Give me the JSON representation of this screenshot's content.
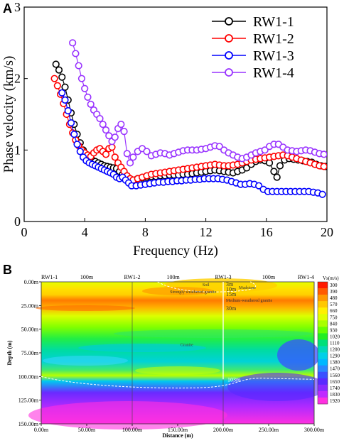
{
  "chart_data": [
    {
      "panel": "A",
      "type": "line",
      "xlabel": "Frequency (Hz)",
      "ylabel": "Phase velocity (km/s)",
      "xlim": [
        0,
        20
      ],
      "ylim": [
        0,
        3
      ],
      "xticks": [
        "0",
        "4",
        "8",
        "12",
        "16",
        "20"
      ],
      "yticks": [
        "0",
        "1",
        "2",
        "3"
      ],
      "legend_position": "top-right",
      "series": [
        {
          "name": "RW1-1",
          "color": "#000000",
          "x": [
            2.1,
            2.3,
            2.5,
            2.7,
            2.9,
            3.1,
            3.3,
            3.5,
            3.7,
            3.9,
            4.1,
            4.3,
            4.5,
            4.7,
            4.9,
            5.1,
            5.3,
            5.5,
            5.7,
            5.9,
            6.1,
            6.3,
            6.5,
            6.7,
            6.9,
            7.1,
            7.3,
            7.5,
            7.8,
            8.1,
            8.4,
            8.7,
            9.0,
            9.3,
            9.6,
            9.9,
            10.2,
            10.5,
            10.8,
            11.1,
            11.4,
            11.7,
            12.0,
            12.3,
            12.6,
            12.9,
            13.2,
            13.5,
            13.8,
            14.1,
            14.4,
            14.7,
            15.0,
            15.3,
            15.6,
            15.9,
            16.2,
            16.5,
            16.7,
            16.9,
            17.2,
            17.5,
            17.8,
            18.1,
            18.4,
            18.7,
            19.0,
            19.3,
            19.6,
            19.9
          ],
          "y": [
            2.2,
            2.12,
            2.02,
            1.88,
            1.7,
            1.52,
            1.36,
            1.22,
            1.1,
            1.0,
            0.94,
            0.9,
            0.86,
            0.84,
            0.82,
            0.8,
            0.78,
            0.77,
            0.76,
            0.75,
            0.74,
            0.7,
            0.66,
            0.62,
            0.6,
            0.58,
            0.58,
            0.6,
            0.61,
            0.62,
            0.63,
            0.63,
            0.64,
            0.64,
            0.65,
            0.65,
            0.65,
            0.66,
            0.66,
            0.67,
            0.68,
            0.69,
            0.7,
            0.71,
            0.72,
            0.71,
            0.7,
            0.69,
            0.68,
            0.7,
            0.72,
            0.75,
            0.8,
            0.84,
            0.86,
            0.85,
            0.82,
            0.7,
            0.62,
            0.78,
            0.86,
            0.88,
            0.87,
            0.86,
            0.85,
            0.84,
            0.83,
            0.8,
            0.78,
            0.77
          ]
        },
        {
          "name": "RW1-2",
          "color": "#ff0000",
          "x": [
            2.0,
            2.2,
            2.4,
            2.6,
            2.8,
            3.0,
            3.2,
            3.4,
            3.6,
            3.8,
            4.0,
            4.2,
            4.4,
            4.6,
            4.8,
            5.0,
            5.2,
            5.4,
            5.6,
            5.8,
            6.0,
            6.2,
            6.4,
            6.6,
            6.8,
            7.0,
            7.2,
            7.5,
            7.8,
            8.1,
            8.4,
            8.7,
            9.0,
            9.3,
            9.6,
            9.9,
            10.2,
            10.5,
            10.8,
            11.1,
            11.4,
            11.7,
            12.0,
            12.3,
            12.6,
            12.9,
            13.2,
            13.5,
            13.8,
            14.1,
            14.4,
            14.7,
            15.0,
            15.3,
            15.6,
            15.9,
            16.2,
            16.5,
            16.8,
            17.1,
            17.4,
            17.7,
            18.0,
            18.3,
            18.6,
            18.9,
            19.2,
            19.5,
            19.8
          ],
          "y": [
            2.0,
            1.9,
            1.78,
            1.65,
            1.5,
            1.36,
            1.24,
            1.14,
            1.06,
            1.0,
            0.96,
            0.93,
            0.91,
            0.96,
            1.0,
            1.02,
            0.98,
            0.94,
            1.02,
            1.04,
            0.9,
            0.82,
            0.76,
            0.7,
            0.64,
            0.6,
            0.58,
            0.6,
            0.62,
            0.64,
            0.66,
            0.67,
            0.68,
            0.69,
            0.7,
            0.71,
            0.72,
            0.73,
            0.74,
            0.75,
            0.76,
            0.77,
            0.78,
            0.79,
            0.8,
            0.79,
            0.78,
            0.78,
            0.79,
            0.8,
            0.82,
            0.84,
            0.86,
            0.87,
            0.88,
            0.89,
            0.9,
            0.91,
            0.92,
            0.93,
            0.92,
            0.9,
            0.88,
            0.86,
            0.84,
            0.82,
            0.8,
            0.78,
            0.77
          ]
        },
        {
          "name": "RW1-3",
          "color": "#0000ff",
          "x": [
            2.5,
            2.7,
            2.9,
            3.1,
            3.3,
            3.5,
            3.7,
            3.9,
            4.1,
            4.3,
            4.5,
            4.7,
            4.9,
            5.1,
            5.3,
            5.5,
            5.7,
            5.9,
            6.1,
            6.3,
            6.5,
            6.7,
            6.9,
            7.1,
            7.4,
            7.7,
            8.0,
            8.3,
            8.6,
            8.9,
            9.2,
            9.5,
            9.8,
            10.1,
            10.4,
            10.7,
            11.0,
            11.3,
            11.6,
            11.9,
            12.2,
            12.5,
            12.8,
            13.1,
            13.4,
            13.7,
            14.0,
            14.3,
            14.6,
            14.9,
            15.2,
            15.5,
            15.8,
            16.1,
            16.4,
            16.7,
            17.0,
            17.3,
            17.6,
            17.9,
            18.2,
            18.5,
            18.8,
            19.1,
            19.4,
            19.7
          ],
          "y": [
            1.8,
            1.7,
            1.55,
            1.38,
            1.22,
            1.08,
            0.98,
            0.9,
            0.85,
            0.82,
            0.8,
            0.78,
            0.76,
            0.74,
            0.72,
            0.7,
            0.68,
            0.66,
            0.62,
            0.6,
            0.62,
            0.58,
            0.54,
            0.5,
            0.5,
            0.51,
            0.52,
            0.53,
            0.54,
            0.55,
            0.55,
            0.56,
            0.56,
            0.57,
            0.57,
            0.58,
            0.58,
            0.59,
            0.59,
            0.6,
            0.6,
            0.6,
            0.6,
            0.59,
            0.58,
            0.56,
            0.54,
            0.52,
            0.52,
            0.53,
            0.52,
            0.5,
            0.45,
            0.42,
            0.42,
            0.42,
            0.42,
            0.42,
            0.42,
            0.42,
            0.42,
            0.42,
            0.42,
            0.41,
            0.4,
            0.38
          ]
        },
        {
          "name": "RW1-4",
          "color": "#9933ff",
          "x": [
            3.2,
            3.4,
            3.6,
            3.8,
            4.0,
            4.2,
            4.4,
            4.6,
            4.8,
            5.0,
            5.2,
            5.4,
            5.6,
            5.8,
            6.0,
            6.2,
            6.4,
            6.6,
            6.8,
            7.0,
            7.2,
            7.5,
            7.8,
            8.1,
            8.4,
            8.7,
            9.0,
            9.3,
            9.6,
            9.9,
            10.2,
            10.5,
            10.8,
            11.1,
            11.4,
            11.7,
            12.0,
            12.3,
            12.6,
            12.9,
            13.2,
            13.5,
            13.8,
            14.1,
            14.4,
            14.7,
            15.0,
            15.3,
            15.6,
            15.9,
            16.2,
            16.5,
            16.8,
            17.1,
            17.4,
            17.7,
            18.0,
            18.3,
            18.6,
            18.9,
            19.2,
            19.5,
            19.8
          ],
          "y": [
            2.5,
            2.35,
            2.18,
            2.0,
            1.86,
            1.74,
            1.64,
            1.56,
            1.5,
            1.44,
            1.36,
            1.28,
            1.2,
            1.12,
            1.18,
            1.3,
            1.36,
            1.26,
            0.95,
            0.82,
            0.9,
            0.98,
            1.02,
            0.98,
            0.92,
            0.94,
            0.96,
            0.95,
            0.93,
            0.95,
            0.97,
            0.99,
            1.0,
            1.0,
            1.0,
            1.01,
            1.02,
            1.04,
            1.06,
            1.05,
            1.0,
            0.96,
            0.93,
            0.9,
            0.88,
            0.9,
            0.93,
            0.96,
            0.98,
            1.0,
            1.05,
            1.08,
            1.08,
            1.04,
            1.0,
            0.99,
            0.98,
            0.99,
            1.0,
            0.99,
            0.97,
            0.95,
            0.94
          ]
        }
      ]
    },
    {
      "panel": "B",
      "type": "heatmap",
      "xlabel": "Distance  (m)",
      "ylabel": "Depth (m)",
      "xlim": [
        0,
        300
      ],
      "ylim": [
        0,
        150
      ],
      "xticks": [
        "0.00m",
        "50.00m",
        "100.00m",
        "150.00m",
        "200.00m",
        "250.00m",
        "300.00m"
      ],
      "yticks": [
        "0.00m",
        "25.00m",
        "50.00m",
        "75.00m",
        "100.00m",
        "125.00m",
        "150.00m"
      ],
      "stations": [
        {
          "label": "RW1-1",
          "x": 0
        },
        {
          "label": "RW1-2",
          "x": 100
        },
        {
          "label": "RW1-3",
          "x": 200
        },
        {
          "label": "RW1-4",
          "x": 300
        }
      ],
      "spacing_labels": [
        {
          "text": "100m",
          "x": 50
        },
        {
          "text": "100m",
          "x": 145
        },
        {
          "text": "100m",
          "x": 250
        }
      ],
      "annotations": {
        "soil": "Soil",
        "mudstone": "Mudstone",
        "strongly_weathered": "Strongly weathered granite",
        "medium_weathered": "Medium-weathered granite",
        "granite": "Granite",
        "d3": "3m",
        "d10": "10m",
        "d15": "15m",
        "d30": "30m",
        "d103": "103m"
      },
      "colorbar": {
        "title": "Vs(m/s)",
        "labels": [
          "300",
          "390",
          "480",
          "570",
          "660",
          "750",
          "840",
          "930",
          "1020",
          "1110",
          "1200",
          "1290",
          "1380",
          "1470",
          "1560",
          "1650",
          "1740",
          "1830",
          "1920"
        ],
        "colors": [
          "#ff1a00",
          "#ff5a00",
          "#ff9800",
          "#ffc800",
          "#fff000",
          "#e0ff00",
          "#a8ff00",
          "#66ff00",
          "#22ee22",
          "#00e07a",
          "#00d8b8",
          "#00d0e8",
          "#00b8ff",
          "#2a88ff",
          "#3a50ff",
          "#5a2aff",
          "#8a2aff",
          "#c02aff",
          "#ff30e0"
        ]
      }
    }
  ]
}
